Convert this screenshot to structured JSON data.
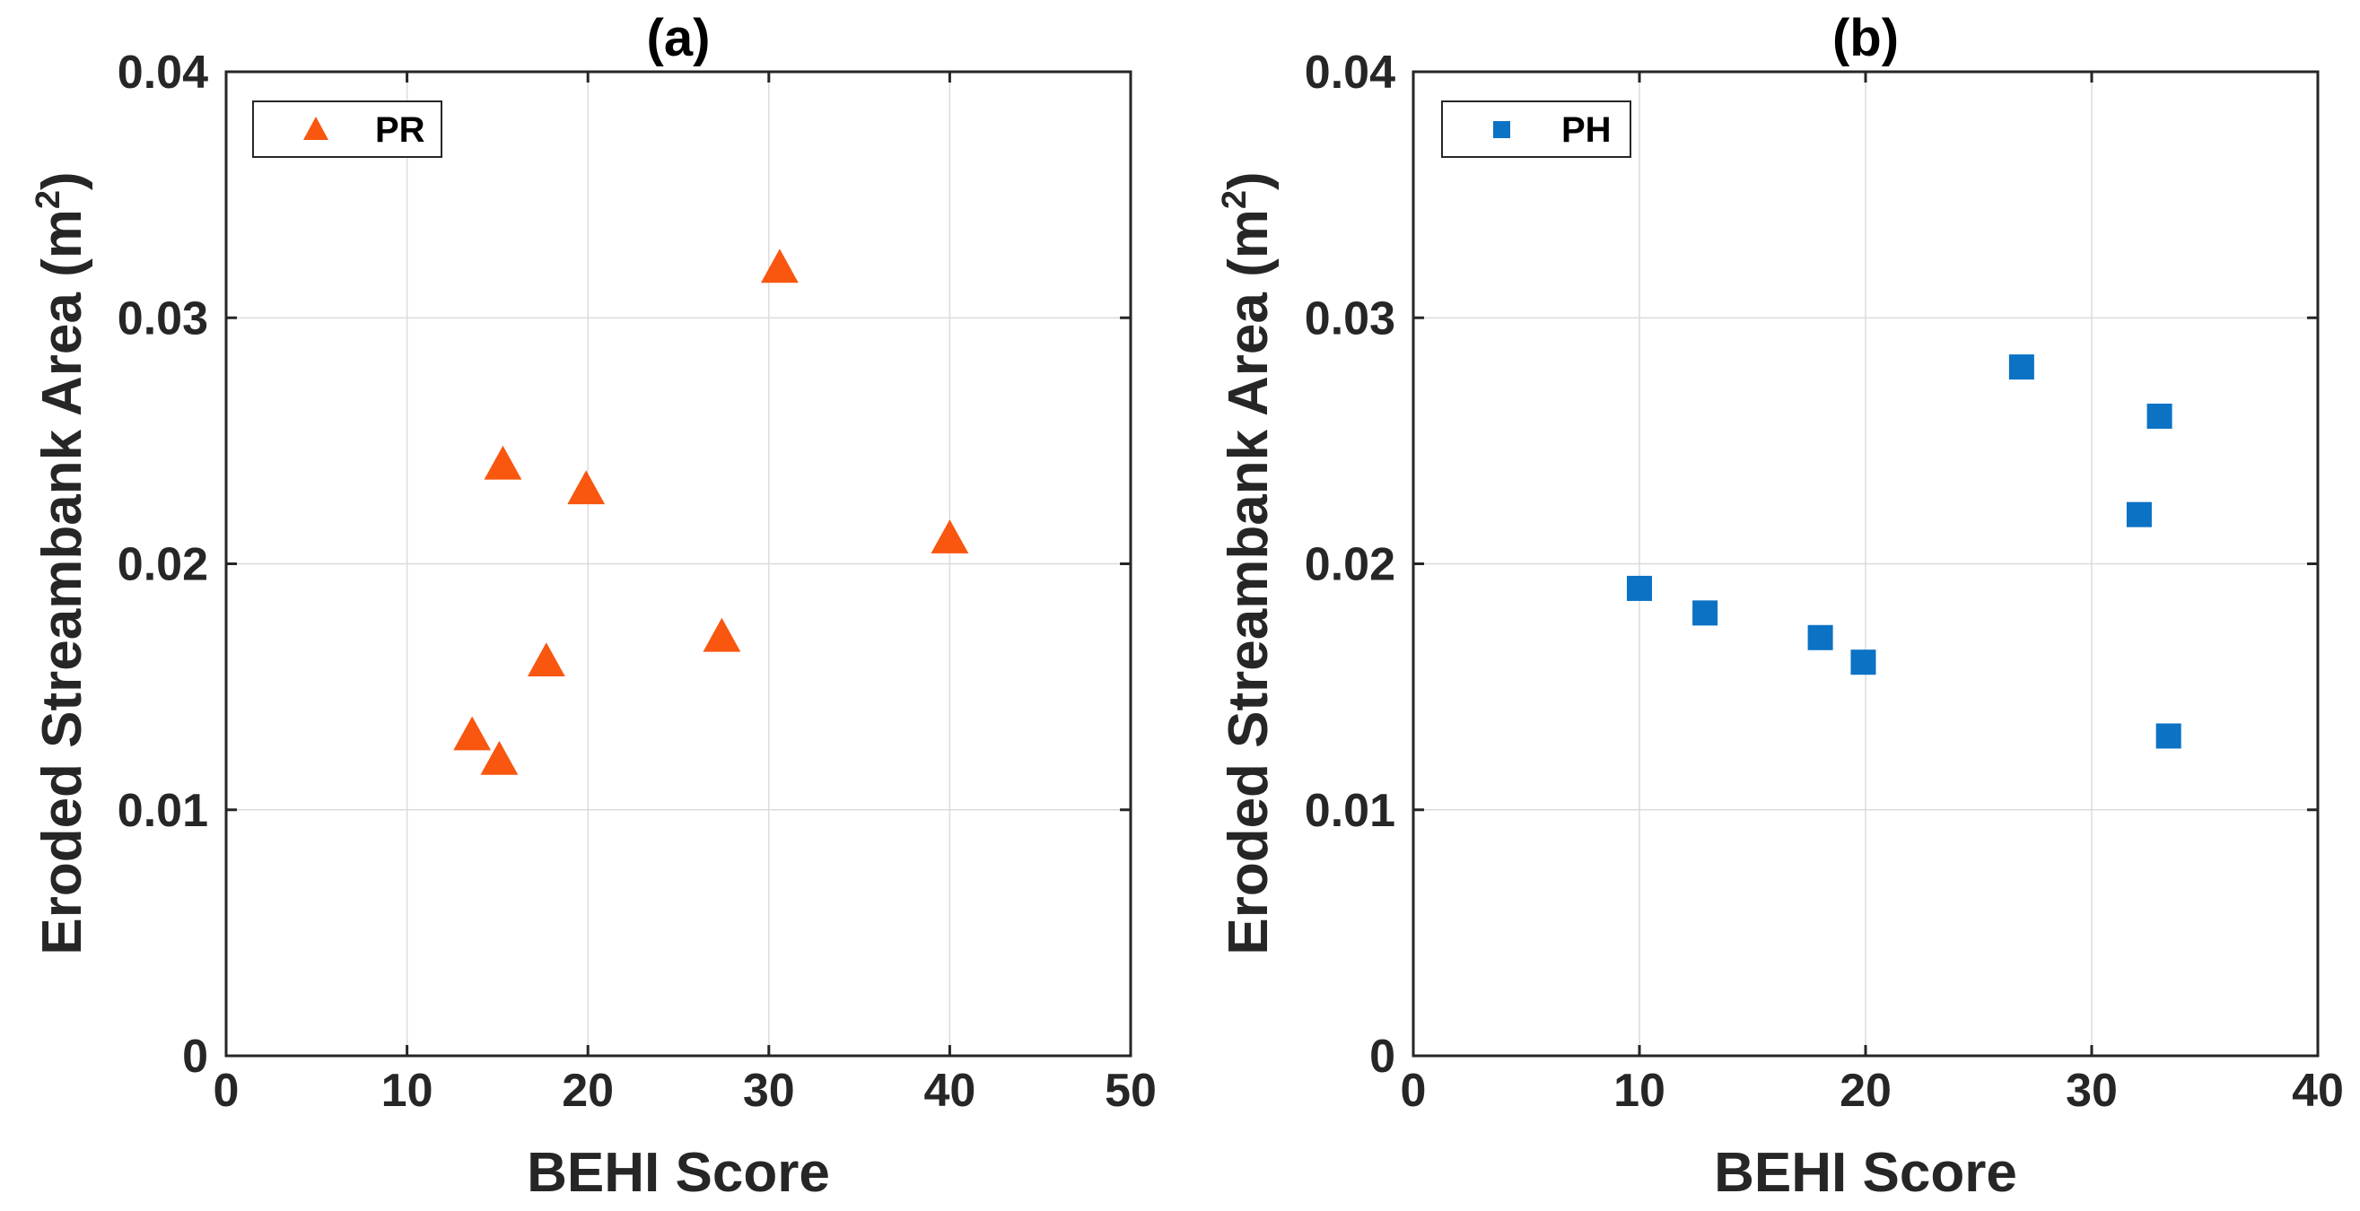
{
  "chart_data": [
    {
      "type": "scatter",
      "title": "(a)",
      "xlabel": "BEHI Score",
      "ylabel": "Eroded Streambank Area (m",
      "ylabel_sup": "2",
      "ylabel_close": ")",
      "xlim": [
        0,
        50
      ],
      "ylim": [
        0,
        0.04
      ],
      "xticks": [
        "0",
        "10",
        "20",
        "30",
        "40",
        "50"
      ],
      "yticks": [
        "0",
        "0.01",
        "0.02",
        "0.03",
        "0.04"
      ],
      "grid": true,
      "legend_position": "top-left",
      "series": [
        {
          "name": "PR",
          "marker": "triangle",
          "color": "#F9560F",
          "x": [
            13.6,
            15.1,
            15.3,
            17.7,
            19.9,
            27.4,
            30.6,
            40.0
          ],
          "y": [
            0.013,
            0.012,
            0.024,
            0.016,
            0.023,
            0.017,
            0.032,
            0.021
          ]
        }
      ]
    },
    {
      "type": "scatter",
      "title": "(b)",
      "xlabel": "BEHI Score",
      "ylabel": "Eroded Streambank Area (m",
      "ylabel_sup": "2",
      "ylabel_close": ")",
      "xlim": [
        0,
        40
      ],
      "ylim": [
        0,
        0.04
      ],
      "xticks": [
        "0",
        "10",
        "20",
        "30",
        "40"
      ],
      "yticks": [
        "0",
        "0.01",
        "0.02",
        "0.03",
        "0.04"
      ],
      "grid": true,
      "legend_position": "top-left",
      "series": [
        {
          "name": "PH",
          "marker": "square",
          "color": "#0B72C4",
          "x": [
            10.0,
            12.9,
            18.0,
            19.9,
            26.9,
            32.1,
            33.0,
            33.4
          ],
          "y": [
            0.019,
            0.018,
            0.017,
            0.016,
            0.028,
            0.022,
            0.026,
            0.013
          ]
        }
      ]
    }
  ]
}
